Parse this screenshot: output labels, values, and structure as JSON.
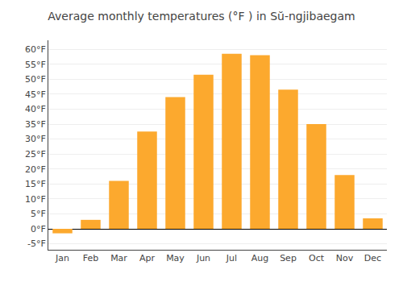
{
  "chart_data": {
    "type": "bar",
    "title": "Average monthly temperatures (°F ) in Sŭ-ngjibaegam",
    "categories": [
      "Jan",
      "Feb",
      "Mar",
      "Apr",
      "May",
      "Jun",
      "Jul",
      "Aug",
      "Sep",
      "Oct",
      "Nov",
      "Dec"
    ],
    "values": [
      -1.5,
      3.0,
      16.0,
      32.5,
      44.0,
      51.5,
      58.5,
      58.0,
      46.5,
      35.0,
      18.0,
      3.5
    ],
    "color": "#FCA92E",
    "ylim": [
      -7,
      63
    ],
    "yticks": [
      {
        "value": -5,
        "label": "-5°F"
      },
      {
        "value": 0,
        "label": "0°F"
      },
      {
        "value": 5,
        "label": "5°F"
      },
      {
        "value": 10,
        "label": "10°F"
      },
      {
        "value": 15,
        "label": "15°F"
      },
      {
        "value": 20,
        "label": "20°F"
      },
      {
        "value": 25,
        "label": "25°F"
      },
      {
        "value": 30,
        "label": "30°F"
      },
      {
        "value": 35,
        "label": "35°F"
      },
      {
        "value": 40,
        "label": "40°F"
      },
      {
        "value": 45,
        "label": "45°F"
      },
      {
        "value": 50,
        "label": "50°F"
      },
      {
        "value": 55,
        "label": "55°F"
      },
      {
        "value": 60,
        "label": "60°F"
      }
    ],
    "grid": true
  }
}
